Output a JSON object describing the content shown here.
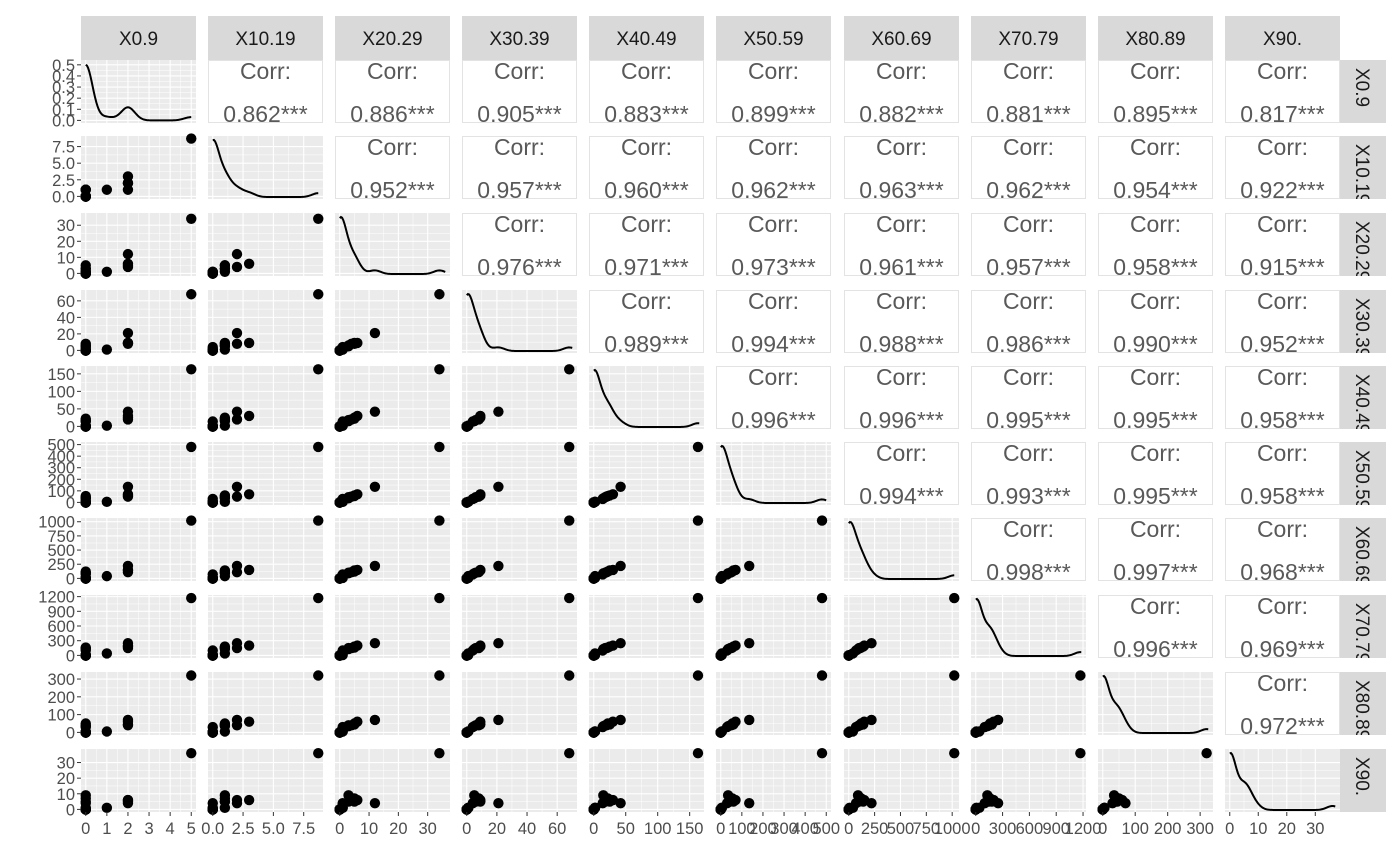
{
  "chart_data": {
    "type": "scatter",
    "subtype": "pairs-matrix",
    "variables": [
      "X0.9",
      "X10.19",
      "X20.29",
      "X30.39",
      "X40.49",
      "X50.59",
      "X60.69",
      "X70.79",
      "X80.89",
      "X90."
    ],
    "corr_label": "Corr:",
    "correlations": [
      [
        "",
        "0.862***",
        "0.886***",
        "0.905***",
        "0.883***",
        "0.899***",
        "0.882***",
        "0.881***",
        "0.895***",
        "0.817***"
      ],
      [
        "",
        "",
        "0.952***",
        "0.957***",
        "0.960***",
        "0.962***",
        "0.963***",
        "0.962***",
        "0.954***",
        "0.922***"
      ],
      [
        "",
        "",
        "",
        "0.976***",
        "0.971***",
        "0.973***",
        "0.961***",
        "0.957***",
        "0.958***",
        "0.915***"
      ],
      [
        "",
        "",
        "",
        "",
        "0.989***",
        "0.994***",
        "0.988***",
        "0.986***",
        "0.990***",
        "0.952***"
      ],
      [
        "",
        "",
        "",
        "",
        "",
        "0.996***",
        "0.996***",
        "0.995***",
        "0.995***",
        "0.958***"
      ],
      [
        "",
        "",
        "",
        "",
        "",
        "",
        "0.994***",
        "0.993***",
        "0.995***",
        "0.958***"
      ],
      [
        "",
        "",
        "",
        "",
        "",
        "",
        "",
        "0.998***",
        "0.997***",
        "0.968***"
      ],
      [
        "",
        "",
        "",
        "",
        "",
        "",
        "",
        "",
        "0.996***",
        "0.969***"
      ],
      [
        "",
        "",
        "",
        "",
        "",
        "",
        "",
        "",
        "",
        "0.972***"
      ],
      [
        "",
        "",
        "",
        "",
        "",
        "",
        "",
        "",
        "",
        ""
      ]
    ],
    "observations": [
      [
        0,
        0,
        0,
        0,
        0,
        0,
        0,
        0,
        0,
        0
      ],
      [
        0,
        0,
        0,
        0,
        0,
        0,
        0,
        0,
        0,
        0
      ],
      [
        0,
        0,
        0,
        0,
        0,
        0,
        0,
        0,
        0,
        0
      ],
      [
        0,
        0,
        0,
        0,
        0,
        0,
        0,
        0,
        0,
        0
      ],
      [
        0,
        0,
        0,
        0,
        0,
        0,
        0,
        0,
        0,
        0
      ],
      [
        0,
        0,
        0,
        0,
        0,
        0,
        0,
        0,
        0,
        0
      ],
      [
        0,
        0,
        0,
        0,
        0,
        0,
        0,
        0,
        0,
        0
      ],
      [
        0,
        0,
        0,
        0,
        0,
        0,
        0,
        0,
        0,
        0
      ],
      [
        0,
        0,
        0,
        0,
        0,
        0,
        0,
        0,
        0,
        0
      ],
      [
        0,
        0,
        0,
        0,
        0,
        0,
        0,
        0,
        0,
        0
      ],
      [
        0,
        0,
        0,
        0,
        0,
        0,
        0,
        0,
        0,
        0
      ],
      [
        0,
        0,
        0,
        0,
        0,
        0,
        0,
        0,
        0,
        0
      ],
      [
        0,
        0,
        1,
        1,
        2,
        5,
        8,
        7,
        5,
        1
      ],
      [
        0,
        0,
        1,
        4,
        14,
        30,
        70,
        100,
        30,
        4
      ],
      [
        0,
        1,
        3,
        6,
        18,
        45,
        100,
        150,
        40,
        5
      ],
      [
        0,
        1,
        3,
        5,
        15,
        35,
        90,
        130,
        35,
        9
      ],
      [
        0,
        1,
        5,
        8,
        22,
        55,
        120,
        160,
        50,
        7
      ],
      [
        1,
        1,
        1,
        1,
        2,
        5,
        40,
        40,
        5,
        1
      ],
      [
        2,
        1,
        5,
        9,
        25,
        60,
        140,
        180,
        45,
        5
      ],
      [
        2,
        2,
        4,
        8,
        20,
        50,
        110,
        150,
        40,
        6
      ],
      [
        2,
        3,
        6,
        9,
        30,
        70,
        150,
        200,
        60,
        6
      ],
      [
        2,
        2,
        12,
        21,
        42,
        135,
        220,
        250,
        70,
        4
      ],
      [
        5,
        8.7,
        34,
        68,
        163,
        480,
        1020,
        1170,
        320,
        36
      ]
    ],
    "panel_ranges": [
      [
        0,
        5
      ],
      [
        0,
        8.7
      ],
      [
        0,
        36
      ],
      [
        0,
        70
      ],
      [
        0,
        165
      ],
      [
        0,
        500
      ],
      [
        0,
        1020
      ],
      [
        0,
        1180
      ],
      [
        0,
        325
      ],
      [
        0,
        37
      ]
    ],
    "density_ylim": [
      0,
      0.52
    ],
    "ticks": [
      [
        0,
        1,
        2,
        3,
        4,
        5
      ],
      [
        0.0,
        2.5,
        5.0,
        7.5
      ],
      [
        0,
        10,
        20,
        30
      ],
      [
        0,
        20,
        40,
        60
      ],
      [
        0,
        50,
        100,
        150
      ],
      [
        0,
        100,
        200,
        300,
        400,
        500
      ],
      [
        0,
        250,
        500,
        750,
        1000
      ],
      [
        0,
        300,
        600,
        900,
        1200
      ],
      [
        0,
        100,
        200,
        300
      ],
      [
        0,
        10,
        20,
        30
      ]
    ],
    "x_tick_labels": [
      [
        "0",
        "1",
        "2",
        "3",
        "4",
        "5"
      ],
      [
        "0.0",
        "2.5",
        "5.0",
        "7.5"
      ],
      [
        "0",
        "10",
        "20",
        "30"
      ],
      [
        "0",
        "20",
        "40",
        "60"
      ],
      [
        "0",
        "50",
        "100",
        "150"
      ],
      [
        "0",
        "100",
        "200",
        "300",
        "400",
        "500"
      ],
      [
        "0",
        "250",
        "500",
        "750",
        "1000"
      ],
      [
        "0",
        "300",
        "600",
        "900",
        "1200"
      ],
      [
        "0",
        "100",
        "200",
        "300"
      ],
      [
        "0",
        "10",
        "20",
        "30"
      ]
    ],
    "diag_y_tick_labels": [
      "0.0",
      "0.1",
      "0.2",
      "0.3",
      "0.4",
      "0.5"
    ],
    "diag_y_ticks": [
      0,
      0.1,
      0.2,
      0.3,
      0.4,
      0.5
    ],
    "y_tick_labels": [
      null,
      [
        "0.0",
        "2.5",
        "5.0",
        "7.5"
      ],
      [
        "0",
        "10",
        "20",
        "30"
      ],
      [
        "0",
        "20",
        "40",
        "60"
      ],
      [
        "0",
        "50",
        "100",
        "150"
      ],
      [
        "0",
        "100",
        "200",
        "300",
        "400",
        "500"
      ],
      [
        "0",
        "250",
        "500",
        "750",
        "1000"
      ],
      [
        "0",
        "300",
        "600",
        "900",
        "1200"
      ],
      [
        "0",
        "100",
        "200",
        "300"
      ],
      [
        "0",
        "10",
        "20",
        "30"
      ]
    ],
    "colors": {
      "panel_bg": "#ebebeb",
      "grid": "#ffffff",
      "strip_bg": "#d9d9d9",
      "corr_border": "#e3e3e3",
      "point": "#000000",
      "density_line": "#000000"
    },
    "grid": true,
    "legend": "none"
  }
}
